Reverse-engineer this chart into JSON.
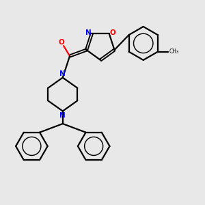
{
  "background_color": "#e8e8e8",
  "bond_color": "#000000",
  "nitrogen_color": "#0000ff",
  "oxygen_color": "#ff0000",
  "bond_width": 1.6,
  "figsize": [
    3.0,
    3.0
  ],
  "dpi": 100,
  "xlim": [
    0,
    10
  ],
  "ylim": [
    0,
    10
  ]
}
